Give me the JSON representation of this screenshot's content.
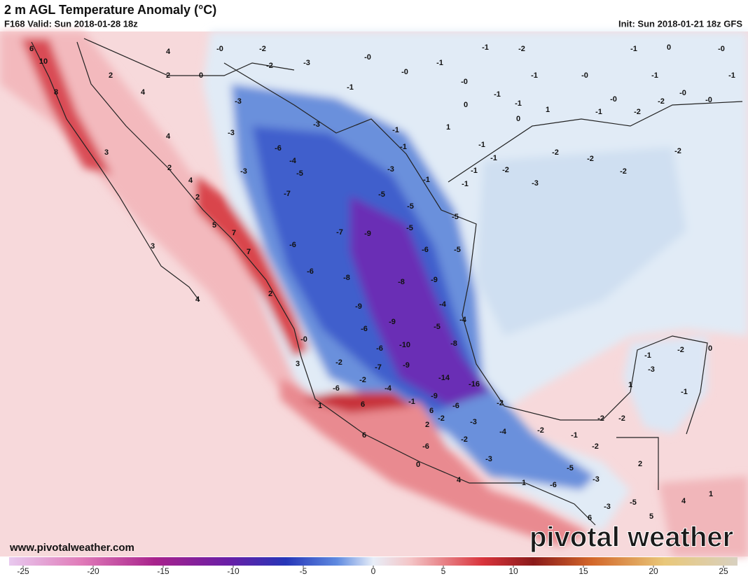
{
  "header": {
    "title": "2 m AGL Temperature Anomaly (°C)",
    "valid": "F168 Valid: Sun 2018-01-28 18z",
    "init": "Init: Sun 2018-01-21 18z GFS"
  },
  "footer": {
    "website": "www.pivotalweather.com",
    "logo": "pivotal weather"
  },
  "colorbar": {
    "ticks": [
      -25,
      -20,
      -15,
      -10,
      -5,
      0,
      5,
      10,
      15,
      20,
      25
    ]
  },
  "map_labels": [
    "6",
    "10",
    "8",
    "3",
    "3",
    "4",
    "4",
    "2",
    "4",
    "4",
    "2",
    "4",
    "2",
    "5",
    "7",
    "7",
    "2",
    "2",
    "0",
    "-0",
    "-2",
    "-2",
    "-3",
    "-3",
    "-3",
    "-6",
    "-4",
    "-5",
    "-3",
    "-7",
    "-6",
    "-6",
    "-7",
    "-8",
    "-9",
    "-9",
    "-5",
    "-5",
    "-5",
    "-3",
    "-6",
    "-8",
    "-9",
    "-4",
    "-9",
    "-6",
    "-5",
    "-4",
    "-8",
    "-10",
    "-9",
    "-6",
    "-7",
    "-14",
    "-16",
    "-4",
    "-2",
    "-2",
    "-6",
    "-0",
    "3",
    "1",
    "6",
    "-1",
    "-9",
    "-6",
    "2",
    "6",
    "-2",
    "-6",
    "6",
    "0",
    "4",
    "-3",
    "-2",
    "-4",
    "-3",
    "-2",
    "-2",
    "1",
    "-6",
    "-5",
    "-3",
    "-1",
    "-2",
    "-2",
    "-2",
    "2",
    "6",
    "-3",
    "-5",
    "5",
    "4",
    "1",
    "-1",
    "-2",
    "0",
    "-3",
    "-1",
    "1",
    "-0",
    "-0",
    "-1",
    "-1",
    "-2",
    "-1",
    "-0",
    "0",
    "-1",
    "-1",
    "-1",
    "-0",
    "1",
    "0",
    "1",
    "-1",
    "-1",
    "-1",
    "-1",
    "-2",
    "-1",
    "-1",
    "-1",
    "-5",
    "-5",
    "-3",
    "-2",
    "-2",
    "-2",
    "-2",
    "-1",
    "-0",
    "-1",
    "0",
    "-0",
    "-1",
    "-1",
    "-0",
    "-0",
    "-2",
    "-2",
    "-3"
  ]
}
